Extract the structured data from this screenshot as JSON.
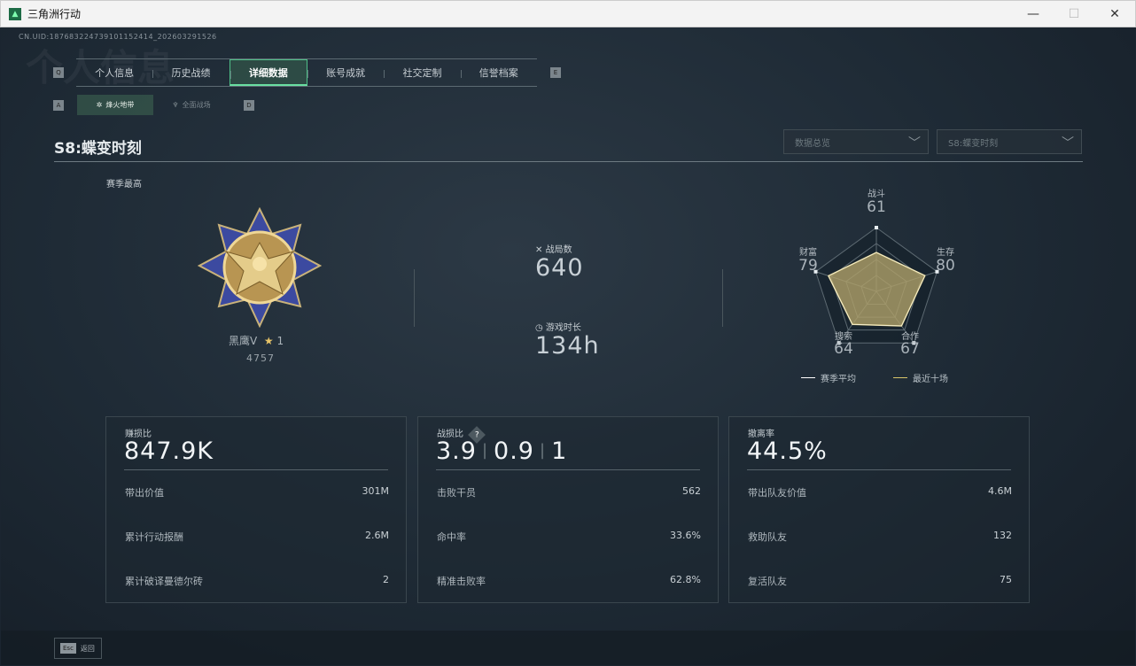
{
  "window": {
    "title": "三角洲行动",
    "minimize": "—",
    "maximize": "☐",
    "close": "✕"
  },
  "uid": "CN.UID:187683224739101152414_202603291526",
  "bg_title": "个人信息",
  "tabs": {
    "left_key": "Q",
    "right_key": "E",
    "items": [
      {
        "label": "个人信息"
      },
      {
        "label": "历史战绩"
      },
      {
        "label": "详细数据",
        "active": true
      },
      {
        "label": "账号成就"
      },
      {
        "label": "社交定制"
      },
      {
        "label": "信誉档案"
      }
    ]
  },
  "subtabs": {
    "left_key": "A",
    "right_key": "D",
    "items": [
      {
        "label": "烽火地带",
        "active": true
      },
      {
        "label": "全面战场"
      }
    ]
  },
  "season_title": "S8:蝶变时刻",
  "dropdowns": [
    {
      "value": "数据总览"
    },
    {
      "value": "S8:蝶变时刻"
    }
  ],
  "season_best": {
    "label": "赛季最高",
    "rank": "黑鹰V",
    "stars": "1",
    "score": "4757"
  },
  "stats": {
    "matches_label": "战局数",
    "matches": "640",
    "playtime_label": "游戏时长",
    "playtime": "134h"
  },
  "chart_data": {
    "type": "radar",
    "axes": [
      "战斗",
      "生存",
      "合作",
      "搜索",
      "财富"
    ],
    "values": [
      61,
      80,
      67,
      64,
      79
    ],
    "range": [
      0,
      100
    ],
    "legend": [
      {
        "name": "赛季平均",
        "color": "#ffffff"
      },
      {
        "name": "最近十场",
        "color": "#d8c46a"
      }
    ]
  },
  "cards": [
    {
      "label": "赚损比",
      "big": "847.9K",
      "rows": [
        {
          "k": "带出价值",
          "v": "301M"
        },
        {
          "k": "累计行动报酬",
          "v": "2.6M"
        },
        {
          "k": "累计破译曼德尔砖",
          "v": "2"
        }
      ]
    },
    {
      "label": "战损比",
      "help": "?",
      "big_parts": [
        "3.9",
        "0.9",
        "1"
      ],
      "rows": [
        {
          "k": "击败干员",
          "v": "562"
        },
        {
          "k": "命中率",
          "v": "33.6%"
        },
        {
          "k": "精准击败率",
          "v": "62.8%"
        }
      ]
    },
    {
      "label": "撤离率",
      "big": "44.5%",
      "rows": [
        {
          "k": "带出队友价值",
          "v": "4.6M"
        },
        {
          "k": "救助队友",
          "v": "132"
        },
        {
          "k": "复活队友",
          "v": "75"
        }
      ]
    }
  ],
  "footer": {
    "esc_key": "Esc",
    "back": "返回"
  },
  "colors": {
    "accent": "#4fbf88",
    "radar_fill": "#a59a6a"
  }
}
